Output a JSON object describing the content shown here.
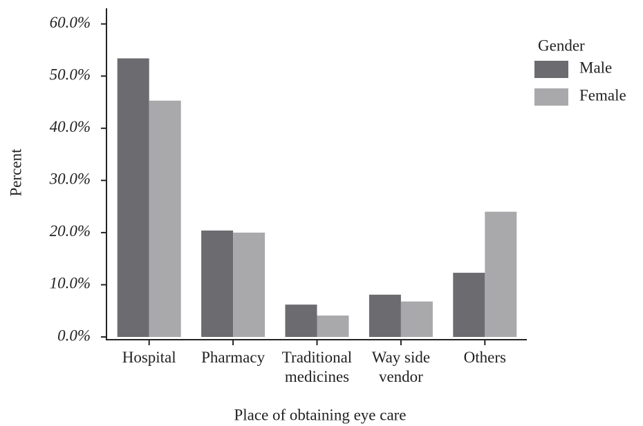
{
  "chart_data": {
    "type": "bar",
    "x_label": "Place of obtaining eye care",
    "y_label": "Percent",
    "legend_title": "Gender",
    "legend_position": "upper right",
    "categories": [
      "Hospital",
      "Pharmacy",
      "Traditional\nmedicines",
      "Way side\nvendor",
      "Others"
    ],
    "series": [
      {
        "name": "Male",
        "color": "#6b6b70",
        "values": [
          53.4,
          20.4,
          6.2,
          8.1,
          12.3
        ]
      },
      {
        "name": "Female",
        "color": "#a9a9ac",
        "values": [
          45.3,
          20.0,
          4.1,
          6.8,
          24.0
        ]
      }
    ],
    "ylim": [
      0,
      63
    ],
    "yticks": [
      {
        "value": 0,
        "label": "0.0%"
      },
      {
        "value": 10,
        "label": "10.0%"
      },
      {
        "value": 20,
        "label": "20.0%"
      },
      {
        "value": 30,
        "label": "30.0%"
      },
      {
        "value": 40,
        "label": "40.0%"
      },
      {
        "value": 50,
        "label": "50.0%"
      },
      {
        "value": 60,
        "label": "60.0%"
      }
    ],
    "grid": false
  }
}
